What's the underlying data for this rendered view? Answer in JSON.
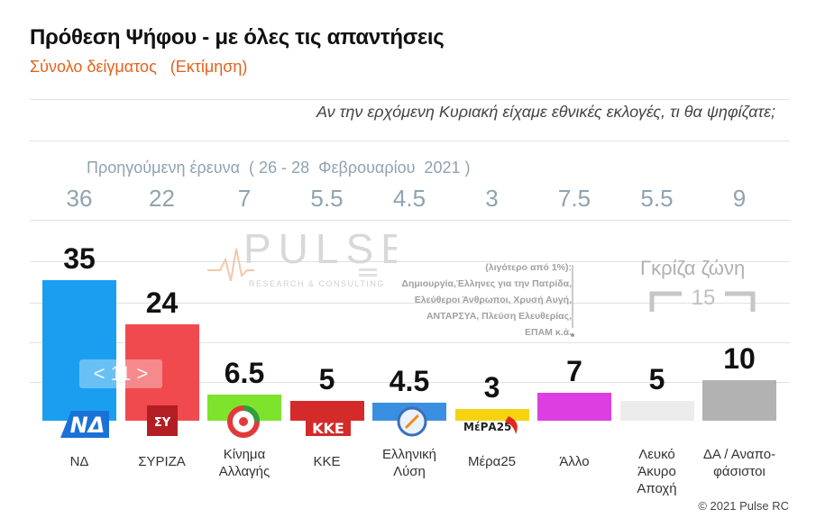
{
  "header": {
    "title": "Πρόθεση Ψήφου - με όλες τις απαντήσεις",
    "subtitle": "Σύνολο δείγματος   (Εκτίμηση)",
    "question": "Αν την ερχόμενη Κυριακή είχαμε εθνικές εκλογές, τι θα ψηφίζατε;"
  },
  "previous": {
    "title": "Προηγούμενη έρευνα  ( 26 - 28  Φεβρουαρίου  2021 )",
    "values": [
      "36",
      "22",
      "7",
      "5.5",
      "4.5",
      "3",
      "7.5",
      "5.5",
      "9"
    ]
  },
  "chart_data": {
    "type": "bar",
    "categories": [
      "ΝΔ",
      "ΣΥΡΙΖΑ",
      "Κίνημα\nΑλλαγής",
      "ΚΚΕ",
      "Ελληνική\nΛύση",
      "Μέρα25",
      "Άλλο",
      "Λευκό\nΆκυρο\nΑποχή",
      "ΔΑ / Αναπο-\nφάσιστοι"
    ],
    "values": [
      35,
      24,
      6.5,
      5,
      4.5,
      3,
      7,
      5,
      10
    ],
    "value_labels": [
      "35",
      "24",
      "6.5",
      "5",
      "4.5",
      "3",
      "7",
      "5",
      "10"
    ],
    "previous_values": [
      36,
      22,
      7,
      5.5,
      4.5,
      3,
      7.5,
      5.5,
      9
    ],
    "colors": [
      "#1a9ff0",
      "#f04a4f",
      "#7ee32c",
      "#d42a2a",
      "#3b8fe0",
      "#f5d40f",
      "#dd3ee2",
      "#ececec",
      "#b2b2b2"
    ],
    "ylim": [
      0,
      40
    ],
    "grid": true
  },
  "annotations": {
    "gap": "< 11 >",
    "grey_zone": "Γκρίζα ζώνη",
    "grey_zone_value": "15",
    "others_note": "(λιγότερο από 1%):\nΔημιουργία,Έλληνες για την Πατρίδα,\nΕλεύθεροι Άνθρωποι, Χρυσή Αυγή,\nΑΝΤΑΡΣΥΑ, Πλεύση Ελευθερίας,\nΕΠΑΜ    κ.ά."
  },
  "logo": {
    "name": "PULSE",
    "tagline": "RESEARCH & CONSULTING"
  },
  "party_logos": {
    "nd": "ΝΔ",
    "syriza": "ΣΥ",
    "kke": "ΚΚΕ",
    "mera25": "ΜέΡΑ25"
  },
  "footer": {
    "copyright": "© 2021 Pulse RC"
  }
}
